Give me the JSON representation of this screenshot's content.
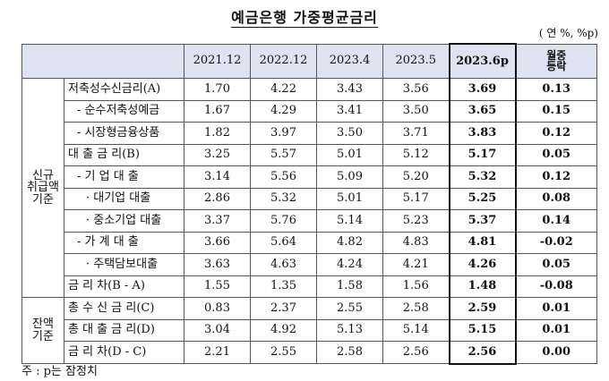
{
  "title": "예금은행 가중평균금리",
  "unit": "( 연 %, %p)",
  "header": {
    "corner": "",
    "columns": [
      "2021.12",
      "2022.12",
      "2023.4",
      "2023.5",
      "2023.6p"
    ],
    "change_label_1": "월중",
    "change_label_2": "등락"
  },
  "groups": {
    "new": "신규\n취급액\n기준",
    "balance": "잔액\n기준"
  },
  "rows": [
    {
      "label": "저축성수신금리(A)",
      "v": [
        "1.70",
        "4.22",
        "3.43",
        "3.56",
        "3.69"
      ],
      "chg": "0.13"
    },
    {
      "label": "- 순수저축성예금",
      "v": [
        "1.67",
        "4.29",
        "3.41",
        "3.50",
        "3.65"
      ],
      "chg": "0.15"
    },
    {
      "label": "- 시장형금융상품",
      "v": [
        "1.82",
        "3.97",
        "3.50",
        "3.71",
        "3.83"
      ],
      "chg": "0.12"
    },
    {
      "label": "대 출 금 리(B)",
      "v": [
        "3.25",
        "5.57",
        "5.01",
        "5.12",
        "5.17"
      ],
      "chg": "0.05"
    },
    {
      "label": "- 기 업 대 출",
      "v": [
        "3.14",
        "5.56",
        "5.09",
        "5.20",
        "5.32"
      ],
      "chg": "0.12"
    },
    {
      "label": "· 대기업 대출",
      "v": [
        "2.86",
        "5.32",
        "5.01",
        "5.17",
        "5.25"
      ],
      "chg": "0.08"
    },
    {
      "label": "· 중소기업 대출",
      "v": [
        "3.37",
        "5.76",
        "5.14",
        "5.23",
        "5.37"
      ],
      "chg": "0.14"
    },
    {
      "label": "- 가 계 대 출",
      "v": [
        "3.66",
        "5.64",
        "4.82",
        "4.83",
        "4.81"
      ],
      "chg": "-0.02"
    },
    {
      "label": "· 주택담보대출",
      "v": [
        "3.63",
        "4.63",
        "4.24",
        "4.21",
        "4.26"
      ],
      "chg": "0.05"
    },
    {
      "label": "금 리 차(B - A)",
      "v": [
        "1.55",
        "1.35",
        "1.58",
        "1.56",
        "1.48"
      ],
      "chg": "-0.08"
    },
    {
      "label": "총 수 신 금 리(C)",
      "v": [
        "0.83",
        "2.37",
        "2.55",
        "2.58",
        "2.59"
      ],
      "chg": "0.01"
    },
    {
      "label": "총 대 출 금 리(D)",
      "v": [
        "3.04",
        "4.92",
        "5.13",
        "5.14",
        "5.15"
      ],
      "chg": "0.01"
    },
    {
      "label": "금 리 차(D - C)",
      "v": [
        "2.21",
        "2.55",
        "2.58",
        "2.56",
        "2.56"
      ],
      "chg": "0.00"
    }
  ],
  "note": "주 : p는 잠정치"
}
